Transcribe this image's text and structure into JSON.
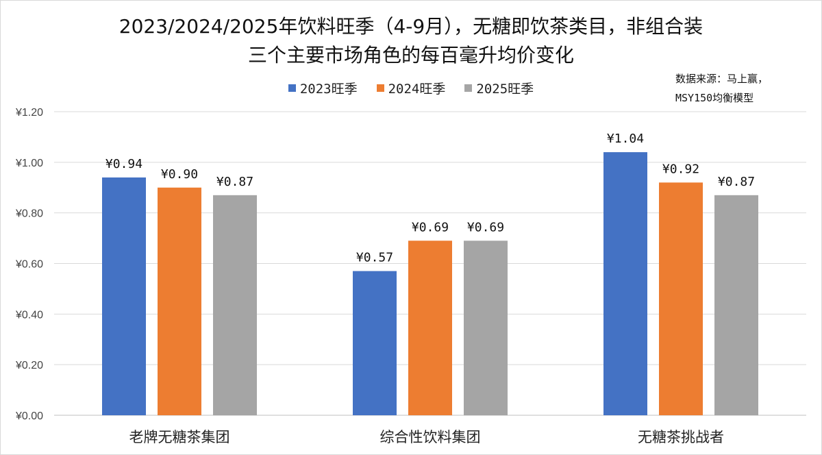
{
  "title": {
    "line1": "2023/2024/2025年饮料旺季（4-9月），无糖即饮茶类目，非组合装",
    "line2": "三个主要市场角色的每百毫升均价变化"
  },
  "source": {
    "line1": "数据来源：马上赢，",
    "line2": "MSY150均衡模型"
  },
  "chart_data": {
    "type": "bar",
    "categories": [
      "老牌无糖茶集团",
      "综合性饮料集团",
      "无糖茶挑战者"
    ],
    "series": [
      {
        "name": "2023旺季",
        "color": "#4472C4",
        "values": [
          0.94,
          0.57,
          1.04
        ],
        "labels": [
          "¥0.94",
          "¥0.57",
          "¥1.04"
        ]
      },
      {
        "name": "2024旺季",
        "color": "#ED7D31",
        "values": [
          0.9,
          0.69,
          0.92
        ],
        "labels": [
          "¥0.90",
          "¥0.69",
          "¥0.92"
        ]
      },
      {
        "name": "2025旺季",
        "color": "#A5A5A5",
        "values": [
          0.87,
          0.69,
          0.87
        ],
        "labels": [
          "¥0.87",
          "¥0.69",
          "¥0.87"
        ]
      }
    ],
    "ylim": [
      0,
      1.2
    ],
    "yticks": [
      "¥0.00",
      "¥0.20",
      "¥0.40",
      "¥0.60",
      "¥0.80",
      "¥1.00",
      "¥1.20"
    ],
    "grid": true,
    "legend_position": "top-center"
  }
}
